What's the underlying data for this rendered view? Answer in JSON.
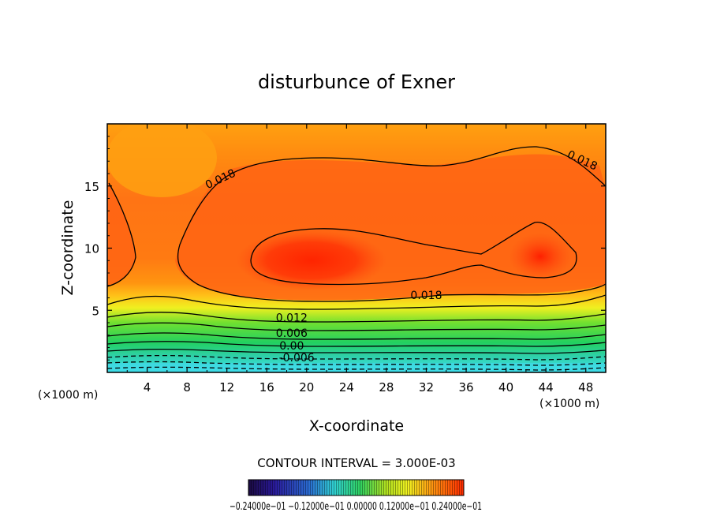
{
  "chart_data": {
    "type": "contour",
    "title": "disturbunce of Exner",
    "xlabel": "X-coordinate",
    "ylabel": "Z-coordinate",
    "x_unit_label": "(×1000 m)",
    "x_unit_label_right": "(×1000 m)",
    "xlim": [
      0,
      50
    ],
    "ylim": [
      0,
      20
    ],
    "x_ticks": [
      "4",
      "8",
      "12",
      "16",
      "20",
      "24",
      "28",
      "32",
      "36",
      "40",
      "44",
      "48"
    ],
    "y_ticks": [
      "5",
      "10",
      "15"
    ],
    "contour_interval_label": "CONTOUR INTERVAL = 3.000E-03",
    "contour_labels": [
      {
        "text": "0.018",
        "x": 11.5,
        "z": 15.3
      },
      {
        "text": "0.018",
        "x": 47.5,
        "z": 16.8
      },
      {
        "text": "0.018",
        "x": 32.0,
        "z": 5.9
      },
      {
        "text": "0.012",
        "x": 18.5,
        "z": 4.1
      },
      {
        "text": "0.006",
        "x": 18.5,
        "z": 2.85
      },
      {
        "text": "0.00",
        "x": 18.5,
        "z": 1.85
      },
      {
        "text": "-0.006",
        "x": 19.0,
        "z": 0.9
      }
    ],
    "colorbar_labels": "−0.24000e−01  −0.12000e−01  0.00000  0.12000e−01  0.24000e−01",
    "max_region_x": [
      16,
      26
    ],
    "max_region_z": [
      7.5,
      11.5
    ],
    "secondary_max": {
      "x": 43.5,
      "z": 9.5
    },
    "grid": false,
    "legend": "bottom colorbar"
  },
  "colors": {
    "deep_blue": "#2a1a88",
    "cyan": "#30e0e0",
    "green": "#20d060",
    "yellow": "#f0f020",
    "orange": "#ff9a10",
    "red": "#ff2a00"
  }
}
